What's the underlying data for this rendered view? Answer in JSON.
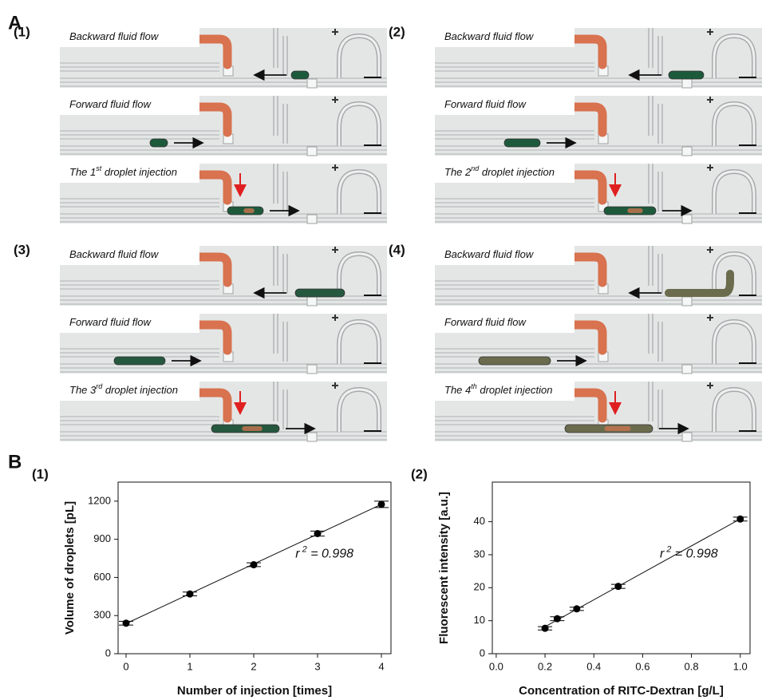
{
  "panel_a": {
    "label": "A",
    "subpanels": [
      {
        "label": "(1)",
        "captions": [
          {
            "text": "Backward fluid flow"
          },
          {
            "text": "Forward fluid flow"
          },
          {
            "text": "The 1",
            "sup": "st",
            "rest": " droplet injection"
          }
        ]
      },
      {
        "label": "(2)",
        "captions": [
          {
            "text": "Backward fluid flow"
          },
          {
            "text": "Forward fluid flow"
          },
          {
            "text": "The 2",
            "sup": "nd",
            "rest": " droplet injection"
          }
        ]
      },
      {
        "label": "(3)",
        "captions": [
          {
            "text": "Backward fluid flow"
          },
          {
            "text": "Forward fluid flow"
          },
          {
            "text": "The 3",
            "sup": "rd",
            "rest": " droplet injection"
          }
        ]
      },
      {
        "label": "(4)",
        "captions": [
          {
            "text": "Backward fluid flow"
          },
          {
            "text": "Forward fluid flow"
          },
          {
            "text": "The 4",
            "sup": "th",
            "rest": " droplet injection"
          }
        ]
      }
    ]
  },
  "panel_b": {
    "label": "B"
  },
  "chart_data": [
    {
      "type": "scatter",
      "panel_label": "(1)",
      "x_label": "Number of injection [times]",
      "y_label": "Volume of droplets [pL]",
      "x": [
        0,
        1,
        2,
        3,
        4
      ],
      "values": [
        240,
        470,
        700,
        945,
        1175
      ],
      "errors": [
        15,
        15,
        15,
        20,
        25
      ],
      "color": "#000000",
      "fit_line": true,
      "xlim": [
        -0.125,
        4.15
      ],
      "ylim": [
        0,
        1350
      ],
      "xticks": [
        0,
        1,
        2,
        3,
        4
      ],
      "yticks": [
        0,
        300,
        600,
        900,
        1200
      ],
      "annotation": {
        "text": "r",
        "sup": "2",
        "rest": " = 0.998"
      }
    },
    {
      "type": "scatter",
      "panel_label": "(2)",
      "x_label": "Concentration of RITC-Dextran [g/L]",
      "y_label": "Fluorescent intensity [a.u.]",
      "x": [
        0.2,
        0.25,
        0.33,
        0.5,
        1.0
      ],
      "values": [
        7.7,
        10.6,
        13.6,
        20.4,
        40.8
      ],
      "errors": [
        0.5,
        0.6,
        0.5,
        0.6,
        0.6
      ],
      "color": "#000000",
      "fit_line": true,
      "xlim": [
        -0.016,
        1.04
      ],
      "ylim": [
        0,
        52
      ],
      "xticks": [
        {
          "value": 0,
          "label": "0.0"
        },
        {
          "value": 0.2,
          "label": "0.2"
        },
        {
          "value": 0.4,
          "label": "0.4"
        },
        {
          "value": 0.6,
          "label": "0.6"
        },
        {
          "value": 0.8,
          "label": "0.8"
        },
        {
          "value": 1.0,
          "label": "1.0"
        }
      ],
      "yticks": [
        0,
        10,
        20,
        30,
        40
      ],
      "annotation": {
        "text": "r",
        "sup": "2",
        "rest": " = 0.998"
      }
    }
  ]
}
